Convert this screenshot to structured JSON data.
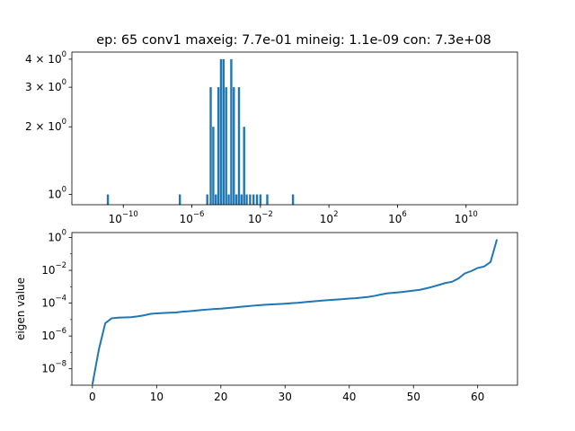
{
  "title": "ep: 65 conv1 maxeig: 7.7e-01 mineig: 1.1e-09 con: 7.3e+08",
  "chart_data": [
    {
      "type": "bar",
      "title": "ep: 65 conv1 maxeig: 7.7e-01 mineig: 1.1e-09 con: 7.3e+08",
      "xscale": "log",
      "yscale": "log",
      "xlim": [
        1e-13,
        10000000000000.0
      ],
      "ylim": [
        0.9,
        4.3
      ],
      "xticks": [
        {
          "exp": -10,
          "label": "10-10"
        },
        {
          "exp": -6,
          "label": "10-6"
        },
        {
          "exp": -2,
          "label": "10-2"
        },
        {
          "exp": 2,
          "label": "102"
        },
        {
          "exp": 6,
          "label": "106"
        },
        {
          "exp": 10,
          "label": "1010"
        }
      ],
      "yticks": [
        {
          "value": 1,
          "label": "10^0"
        },
        {
          "value": 2,
          "label": "2 × 10^0"
        },
        {
          "value": 3,
          "label": "3 × 10^0"
        },
        {
          "value": 4,
          "label": "4 × 10^0"
        }
      ],
      "xlabel": "",
      "ylabel": "",
      "color": "#1f77b4",
      "bins_log10": [
        {
          "x": -10.9,
          "count": 1
        },
        {
          "x": -6.7,
          "count": 1
        },
        {
          "x": -5.1,
          "count": 1
        },
        {
          "x": -4.9,
          "count": 3
        },
        {
          "x": -4.75,
          "count": 2
        },
        {
          "x": -4.6,
          "count": 1
        },
        {
          "x": -4.45,
          "count": 3
        },
        {
          "x": -4.3,
          "count": 4
        },
        {
          "x": -4.15,
          "count": 4
        },
        {
          "x": -4.0,
          "count": 3
        },
        {
          "x": -3.85,
          "count": 1
        },
        {
          "x": -3.7,
          "count": 4
        },
        {
          "x": -3.55,
          "count": 3
        },
        {
          "x": -3.4,
          "count": 1
        },
        {
          "x": -3.25,
          "count": 3
        },
        {
          "x": -3.1,
          "count": 1
        },
        {
          "x": -2.95,
          "count": 2
        },
        {
          "x": -2.8,
          "count": 1
        },
        {
          "x": -2.6,
          "count": 1
        },
        {
          "x": -2.4,
          "count": 1
        },
        {
          "x": -2.2,
          "count": 1
        },
        {
          "x": -2.0,
          "count": 1
        },
        {
          "x": -1.6,
          "count": 1
        },
        {
          "x": -0.1,
          "count": 1
        }
      ]
    },
    {
      "type": "line",
      "title": "",
      "yscale": "log",
      "xlim": [
        -3.2,
        66.2
      ],
      "ylim": [
        1e-09,
        2.0
      ],
      "xticks": [
        0,
        10,
        20,
        30,
        40,
        50,
        60
      ],
      "yticks": [
        {
          "exp": -8,
          "label": "10-8"
        },
        {
          "exp": -6,
          "label": "10-6"
        },
        {
          "exp": -4,
          "label": "10-4"
        },
        {
          "exp": -2,
          "label": "10-2"
        },
        {
          "exp": 0,
          "label": "100"
        }
      ],
      "xlabel": "",
      "ylabel": "eigen value",
      "color": "#1f77b4",
      "series": [
        {
          "x": [
            0,
            1,
            2,
            3,
            4,
            5,
            6,
            7,
            8,
            9,
            10,
            11,
            12,
            13,
            14,
            15,
            16,
            17,
            18,
            19,
            20,
            21,
            22,
            23,
            24,
            25,
            26,
            27,
            28,
            29,
            30,
            31,
            32,
            33,
            34,
            35,
            36,
            37,
            38,
            39,
            40,
            41,
            42,
            43,
            44,
            45,
            46,
            47,
            48,
            49,
            50,
            51,
            52,
            53,
            54,
            55,
            56,
            57,
            58,
            59,
            60,
            61,
            62,
            63
          ],
          "y": [
            1.1e-09,
            1.5e-07,
            6e-06,
            1.2e-05,
            1.3e-05,
            1.35e-05,
            1.4e-05,
            1.55e-05,
            1.8e-05,
            2.2e-05,
            2.4e-05,
            2.5e-05,
            2.6e-05,
            2.7e-05,
            3e-05,
            3.2e-05,
            3.5e-05,
            3.8e-05,
            4.1e-05,
            4.4e-05,
            4.6e-05,
            5e-05,
            5.4e-05,
            5.9e-05,
            6.4e-05,
            7e-05,
            7.5e-05,
            8e-05,
            8.4e-05,
            8.8e-05,
            9.3e-05,
            0.0001,
            0.000105,
            0.000115,
            0.000125,
            0.000135,
            0.000145,
            0.000155,
            0.000165,
            0.000175,
            0.00019,
            0.0002,
            0.00022,
            0.00024,
            0.00028,
            0.00034,
            0.0004,
            0.00043,
            0.00047,
            0.00052,
            0.00058,
            0.00065,
            0.0008,
            0.001,
            0.0013,
            0.0017,
            0.002,
            0.0032,
            0.0065,
            0.009,
            0.014,
            0.017,
            0.032,
            0.77
          ]
        }
      ]
    }
  ]
}
